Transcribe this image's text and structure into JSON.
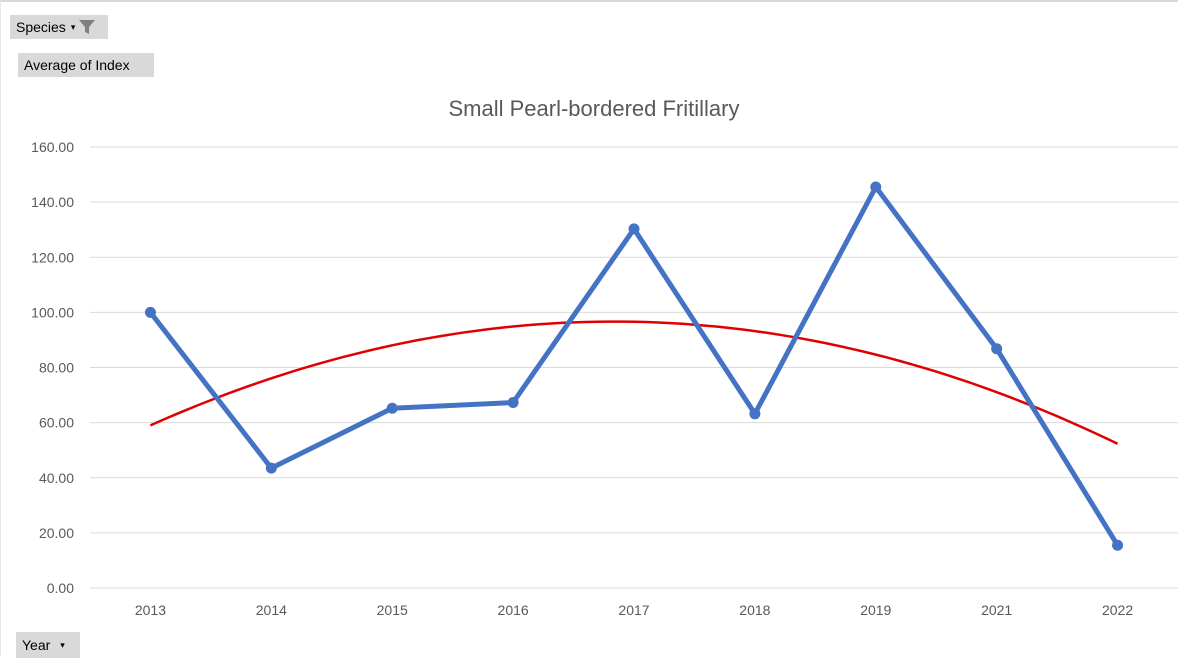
{
  "pivot": {
    "filter_field": "Species",
    "value_field": "Average of Index",
    "axis_field": "Year"
  },
  "colors": {
    "series": "#4472c4",
    "trendline": "#e00000",
    "grid": "#d9d9d9",
    "text": "#595959",
    "button_bg": "#d9d9d9"
  },
  "icons": [
    "dropdown-arrow-icon",
    "filter-icon"
  ],
  "chart_data": {
    "type": "line",
    "title": "Small Pearl-bordered Fritillary",
    "categories": [
      "2013",
      "2014",
      "2015",
      "2016",
      "2017",
      "2018",
      "2019",
      "2021",
      "2022"
    ],
    "series": [
      {
        "values": [
          100.0,
          43.5,
          65.2,
          67.3,
          130.3,
          63.2,
          145.5,
          86.8,
          15.5
        ]
      }
    ],
    "trendline": {
      "type": "polynomial",
      "order": 2,
      "values": [
        59.0,
        96.6,
        52.3
      ],
      "at_categories": [
        "2013",
        "2017",
        "2022"
      ]
    },
    "ylim": [
      0,
      160
    ],
    "yticks": [
      "0.00",
      "20.00",
      "40.00",
      "60.00",
      "80.00",
      "100.00",
      "120.00",
      "140.00",
      "160.00"
    ],
    "grid": true,
    "legend": "none",
    "xlabel": "",
    "ylabel": ""
  }
}
